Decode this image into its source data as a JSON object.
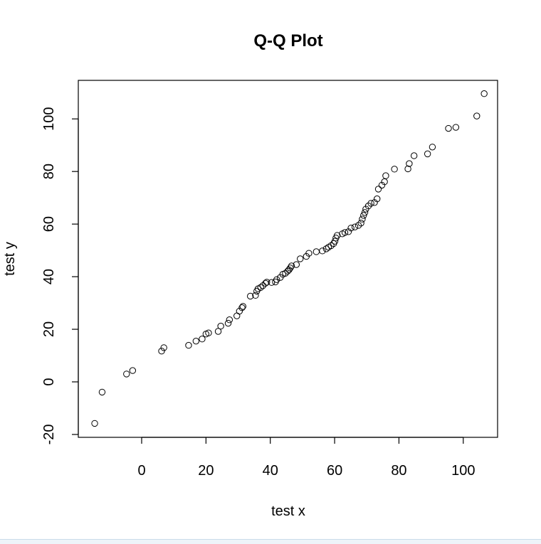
{
  "chart_data": {
    "type": "scatter",
    "title": "Q-Q Plot",
    "xlabel": "test x",
    "ylabel": "test y",
    "xlim": [
      -20,
      110
    ],
    "ylim": [
      -20,
      110
    ],
    "xticks": [
      0,
      20,
      40,
      60,
      80,
      100
    ],
    "yticks": [
      -20,
      0,
      20,
      40,
      60,
      80,
      100
    ],
    "xtick_labels": [
      "0",
      "20",
      "40",
      "60",
      "80",
      "100"
    ],
    "ytick_labels": [
      "-20",
      "0",
      "20",
      "40",
      "60",
      "80",
      "100"
    ],
    "grid": false,
    "marker": "open-circle",
    "color": "#000000",
    "points": [
      [
        -14.6,
        -15.8
      ],
      [
        -12.3,
        -3.9
      ],
      [
        -4.7,
        3.0
      ],
      [
        -2.8,
        4.3
      ],
      [
        6.2,
        11.7
      ],
      [
        6.9,
        13.0
      ],
      [
        14.6,
        13.9
      ],
      [
        16.9,
        15.5
      ],
      [
        18.8,
        16.3
      ],
      [
        20.0,
        18.2
      ],
      [
        20.8,
        18.6
      ],
      [
        23.8,
        19.2
      ],
      [
        24.6,
        21.2
      ],
      [
        26.9,
        22.3
      ],
      [
        27.3,
        23.6
      ],
      [
        29.6,
        25.1
      ],
      [
        30.4,
        26.9
      ],
      [
        31.2,
        28.2
      ],
      [
        31.5,
        28.7
      ],
      [
        33.8,
        32.6
      ],
      [
        35.4,
        32.9
      ],
      [
        35.8,
        34.5
      ],
      [
        36.2,
        35.4
      ],
      [
        37.0,
        35.9
      ],
      [
        37.7,
        36.6
      ],
      [
        38.5,
        37.5
      ],
      [
        38.9,
        37.9
      ],
      [
        40.4,
        37.8
      ],
      [
        41.6,
        38.0
      ],
      [
        42.0,
        38.9
      ],
      [
        43.1,
        39.7
      ],
      [
        43.9,
        40.9
      ],
      [
        44.7,
        41.3
      ],
      [
        45.4,
        42.1
      ],
      [
        45.8,
        42.6
      ],
      [
        46.2,
        43.3
      ],
      [
        46.6,
        44.1
      ],
      [
        48.1,
        44.6
      ],
      [
        49.3,
        46.8
      ],
      [
        51.2,
        47.7
      ],
      [
        52.0,
        48.9
      ],
      [
        54.3,
        49.5
      ],
      [
        56.2,
        49.8
      ],
      [
        57.4,
        50.6
      ],
      [
        58.1,
        51.2
      ],
      [
        58.9,
        51.8
      ],
      [
        59.7,
        52.6
      ],
      [
        60.1,
        53.5
      ],
      [
        60.4,
        54.7
      ],
      [
        60.8,
        55.7
      ],
      [
        62.4,
        56.3
      ],
      [
        63.2,
        56.8
      ],
      [
        64.3,
        57.1
      ],
      [
        65.1,
        58.5
      ],
      [
        66.3,
        58.9
      ],
      [
        67.4,
        59.5
      ],
      [
        68.2,
        60.4
      ],
      [
        68.6,
        61.9
      ],
      [
        69.0,
        63.3
      ],
      [
        69.4,
        64.4
      ],
      [
        69.7,
        65.7
      ],
      [
        70.5,
        66.9
      ],
      [
        71.3,
        67.9
      ],
      [
        72.4,
        68.2
      ],
      [
        73.2,
        69.6
      ],
      [
        73.6,
        73.3
      ],
      [
        74.7,
        74.8
      ],
      [
        75.5,
        76.1
      ],
      [
        75.9,
        78.4
      ],
      [
        78.6,
        80.9
      ],
      [
        82.8,
        81.0
      ],
      [
        83.2,
        83.0
      ],
      [
        84.7,
        86.0
      ],
      [
        88.9,
        86.7
      ],
      [
        90.4,
        89.3
      ],
      [
        95.4,
        96.4
      ],
      [
        97.7,
        96.8
      ],
      [
        104.2,
        101.1
      ],
      [
        106.5,
        109.6
      ]
    ]
  }
}
